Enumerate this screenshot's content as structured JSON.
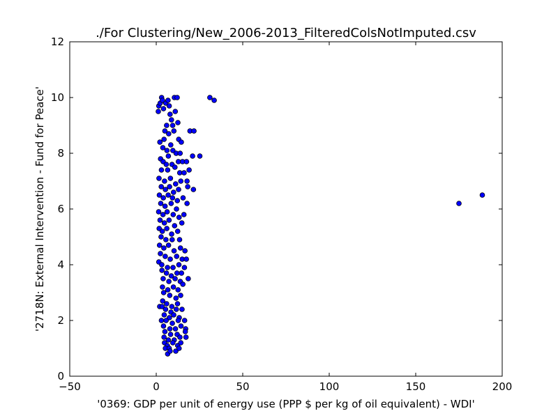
{
  "chart_data": {
    "type": "scatter",
    "title": "./For Clustering/New_2006-2013_FilteredColsNotImputed.csv",
    "xlabel": "'0369: GDP per unit of energy use  (PPP $ per kg of oil equivalent) - WDI'",
    "ylabel": "'2718N: External Intervention - Fund for Peace'",
    "xlim": [
      -50,
      200
    ],
    "ylim": [
      0,
      12
    ],
    "xticks": [
      -50,
      0,
      50,
      100,
      150,
      200
    ],
    "yticks": [
      0,
      2,
      4,
      6,
      8,
      10,
      12
    ],
    "xtick_labels": [
      "−50",
      "0",
      "50",
      "100",
      "150",
      "200"
    ],
    "ytick_labels": [
      "0",
      "2",
      "4",
      "6",
      "8",
      "10",
      "12"
    ],
    "grid": false,
    "legend": "none",
    "marker_color": "#0000ff",
    "marker_edge_color": "#000000",
    "series": [
      {
        "points": [
          [
            1.2,
            9.5
          ],
          [
            1.5,
            9.7
          ],
          [
            2.3,
            9.8
          ],
          [
            3.1,
            10.0
          ],
          [
            3.6,
            9.9
          ],
          [
            4.2,
            9.6
          ],
          [
            5.5,
            9.8
          ],
          [
            6.8,
            9.9
          ],
          [
            7.5,
            9.7
          ],
          [
            8.0,
            9.4
          ],
          [
            8.8,
            9.2
          ],
          [
            10.5,
            10.0
          ],
          [
            12.1,
            10.0
          ],
          [
            11.0,
            9.5
          ],
          [
            9.5,
            9.0
          ],
          [
            12.5,
            9.1
          ],
          [
            6.0,
            9.0
          ],
          [
            5.0,
            8.8
          ],
          [
            7.2,
            8.7
          ],
          [
            10.2,
            8.8
          ],
          [
            13.0,
            8.5
          ],
          [
            14.5,
            8.4
          ],
          [
            19.5,
            8.8
          ],
          [
            21.8,
            8.8
          ],
          [
            31.0,
            10.0
          ],
          [
            33.5,
            9.9
          ],
          [
            2.1,
            8.4
          ],
          [
            3.8,
            8.2
          ],
          [
            4.5,
            8.5
          ],
          [
            8.4,
            8.3
          ],
          [
            9.6,
            8.1
          ],
          [
            11.5,
            8.0
          ],
          [
            13.8,
            8.0
          ],
          [
            6.2,
            8.1
          ],
          [
            7.0,
            7.9
          ],
          [
            2.5,
            7.8
          ],
          [
            4.0,
            7.7
          ],
          [
            5.8,
            7.6
          ],
          [
            9.1,
            7.6
          ],
          [
            12.8,
            7.7
          ],
          [
            15.2,
            7.7
          ],
          [
            17.5,
            7.7
          ],
          [
            21.0,
            7.9
          ],
          [
            25.2,
            7.9
          ],
          [
            3.0,
            7.4
          ],
          [
            6.6,
            7.4
          ],
          [
            10.8,
            7.5
          ],
          [
            13.6,
            7.3
          ],
          [
            16.1,
            7.3
          ],
          [
            19.0,
            7.4
          ],
          [
            1.6,
            7.1
          ],
          [
            4.8,
            7.0
          ],
          [
            8.2,
            7.1
          ],
          [
            11.2,
            6.9
          ],
          [
            14.2,
            7.0
          ],
          [
            17.8,
            7.0
          ],
          [
            2.9,
            6.8
          ],
          [
            5.3,
            6.7
          ],
          [
            7.7,
            6.8
          ],
          [
            10.0,
            6.6
          ],
          [
            12.9,
            6.7
          ],
          [
            18.2,
            6.8
          ],
          [
            21.5,
            6.7
          ],
          [
            1.8,
            6.5
          ],
          [
            4.1,
            6.4
          ],
          [
            6.9,
            6.5
          ],
          [
            9.4,
            6.4
          ],
          [
            12.2,
            6.3
          ],
          [
            15.5,
            6.4
          ],
          [
            2.6,
            6.2
          ],
          [
            5.1,
            6.1
          ],
          [
            8.6,
            6.2
          ],
          [
            11.7,
            6.0
          ],
          [
            17.8,
            6.2
          ],
          [
            1.4,
            5.9
          ],
          [
            3.9,
            5.8
          ],
          [
            6.3,
            5.9
          ],
          [
            9.8,
            5.8
          ],
          [
            13.2,
            5.7
          ],
          [
            16.0,
            5.8
          ],
          [
            2.2,
            5.6
          ],
          [
            4.7,
            5.5
          ],
          [
            7.4,
            5.6
          ],
          [
            10.6,
            5.4
          ],
          [
            14.8,
            5.5
          ],
          [
            1.7,
            5.3
          ],
          [
            3.5,
            5.2
          ],
          [
            6.1,
            5.3
          ],
          [
            8.9,
            5.1
          ],
          [
            12.4,
            5.2
          ],
          [
            2.8,
            5.0
          ],
          [
            5.6,
            4.9
          ],
          [
            9.2,
            4.9
          ],
          [
            13.5,
            4.9
          ],
          [
            1.9,
            4.7
          ],
          [
            4.4,
            4.6
          ],
          [
            7.1,
            4.7
          ],
          [
            10.3,
            4.5
          ],
          [
            14.0,
            4.6
          ],
          [
            16.6,
            4.5
          ],
          [
            2.4,
            4.4
          ],
          [
            5.2,
            4.3
          ],
          [
            8.1,
            4.2
          ],
          [
            11.8,
            4.3
          ],
          [
            15.0,
            4.2
          ],
          [
            17.4,
            4.2
          ],
          [
            1.5,
            4.1
          ],
          [
            3.2,
            4.0
          ],
          [
            6.5,
            3.9
          ],
          [
            9.7,
            3.9
          ],
          [
            13.1,
            4.0
          ],
          [
            16.3,
            3.9
          ],
          [
            3.3,
            3.8
          ],
          [
            5.9,
            3.7
          ],
          [
            8.7,
            3.6
          ],
          [
            12.0,
            3.7
          ],
          [
            14.6,
            3.7
          ],
          [
            4.0,
            3.5
          ],
          [
            7.3,
            3.4
          ],
          [
            10.9,
            3.5
          ],
          [
            13.9,
            3.4
          ],
          [
            18.5,
            3.5
          ],
          [
            3.6,
            3.2
          ],
          [
            6.7,
            3.1
          ],
          [
            9.9,
            3.2
          ],
          [
            12.6,
            3.1
          ],
          [
            15.4,
            3.3
          ],
          [
            4.3,
            3.0
          ],
          [
            7.8,
            2.9
          ],
          [
            11.4,
            2.8
          ],
          [
            14.1,
            2.9
          ],
          [
            3.7,
            2.7
          ],
          [
            6.0,
            2.6
          ],
          [
            9.0,
            2.5
          ],
          [
            12.3,
            2.6
          ],
          [
            2.0,
            2.5
          ],
          [
            3.4,
            2.5
          ],
          [
            5.4,
            2.4
          ],
          [
            8.5,
            2.3
          ],
          [
            11.6,
            2.4
          ],
          [
            14.9,
            2.4
          ],
          [
            4.6,
            2.2
          ],
          [
            7.6,
            2.1
          ],
          [
            10.1,
            2.2
          ],
          [
            13.3,
            2.1
          ],
          [
            3.0,
            2.0
          ],
          [
            5.7,
            2.0
          ],
          [
            9.3,
            1.9
          ],
          [
            12.7,
            2.0
          ],
          [
            16.4,
            2.0
          ],
          [
            4.2,
            1.8
          ],
          [
            7.9,
            1.7
          ],
          [
            11.1,
            1.7
          ],
          [
            14.3,
            1.8
          ],
          [
            17.0,
            1.7
          ],
          [
            5.0,
            1.6
          ],
          [
            8.3,
            1.5
          ],
          [
            12.1,
            1.5
          ],
          [
            16.8,
            1.6
          ],
          [
            4.5,
            1.4
          ],
          [
            7.0,
            1.3
          ],
          [
            10.4,
            1.3
          ],
          [
            13.7,
            1.4
          ],
          [
            17.2,
            1.4
          ],
          [
            4.8,
            1.2
          ],
          [
            6.4,
            1.1
          ],
          [
            9.6,
            1.2
          ],
          [
            12.4,
            1.1
          ],
          [
            14.2,
            1.2
          ],
          [
            5.3,
            1.0
          ],
          [
            7.5,
            1.0
          ],
          [
            11.3,
            0.9
          ],
          [
            13.2,
            1.0
          ],
          [
            6.6,
            0.8
          ],
          [
            8.0,
            0.9
          ],
          [
            175.0,
            6.2
          ],
          [
            188.5,
            6.5
          ]
        ]
      }
    ]
  }
}
